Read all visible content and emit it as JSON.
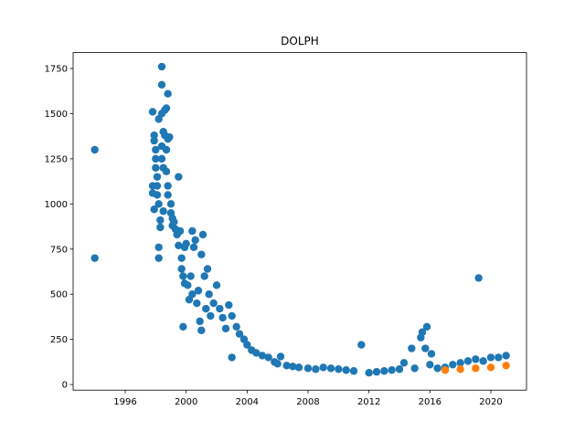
{
  "chart_data": {
    "type": "scatter",
    "title": "DOLPH",
    "xlim": [
      1992.58,
      2022.34
    ],
    "ylim": [
      -31,
      1838
    ],
    "xticks": [
      1996,
      2000,
      2004,
      2008,
      2012,
      2016,
      2020
    ],
    "yticks": [
      0,
      250,
      500,
      750,
      1000,
      1250,
      1500,
      1750
    ],
    "series": [
      {
        "color": "#1f77b4",
        "x": [
          1994.0,
          1994.0,
          1997.8,
          1997.9,
          1997.9,
          1997.8,
          1997.8,
          1997.9,
          1998.0,
          1998.0,
          1998.0,
          1998.1,
          1998.1,
          1998.1,
          1998.2,
          1998.2,
          1998.2,
          1998.2,
          1998.3,
          1998.3,
          1998.4,
          1998.4,
          1998.4,
          1998.4,
          1998.4,
          1998.5,
          1998.5,
          1998.5,
          1998.6,
          1998.6,
          1998.7,
          1998.7,
          1998.7,
          1998.8,
          1998.8,
          1998.8,
          1998.8,
          1998.9,
          1999.0,
          1999.0,
          1999.1,
          1999.1,
          1999.2,
          1999.3,
          1999.4,
          1999.5,
          1999.5,
          1999.6,
          1999.7,
          1999.7,
          1999.8,
          1999.8,
          1999.9,
          1999.9,
          2000.0,
          2000.1,
          2000.2,
          2000.3,
          2000.4,
          2000.4,
          2000.5,
          2000.6,
          2000.7,
          2000.8,
          2000.9,
          2001.0,
          2001.0,
          2001.1,
          2001.2,
          2001.3,
          2001.4,
          2001.5,
          2001.6,
          2001.8,
          2002.0,
          2002.2,
          2002.4,
          2002.6,
          2002.8,
          2003.0,
          2003.0,
          2003.3,
          2003.5,
          2003.8,
          2004.0,
          2004.3,
          2004.6,
          2005.0,
          2005.4,
          2005.8,
          2006.0,
          2006.2,
          2006.6,
          2007.0,
          2007.4,
          2008.0,
          2008.5,
          2009.0,
          2009.5,
          2010.0,
          2010.5,
          2011.0,
          2011.5,
          2012.0,
          2012.5,
          2013.0,
          2013.5,
          2014.0,
          2014.3,
          2014.8,
          2015.0,
          2015.4,
          2015.5,
          2015.7,
          2015.8,
          2016.0,
          2016.1,
          2016.5,
          2017.0,
          2017.5,
          2018.0,
          2018.5,
          2019.0,
          2019.2,
          2019.5,
          2020.0,
          2020.5,
          2021.0
        ],
        "values": [
          1300,
          700,
          1510,
          1380,
          1350,
          1100,
          1060,
          970,
          1300,
          1250,
          1200,
          1150,
          1100,
          1050,
          1470,
          1000,
          760,
          700,
          910,
          870,
          1760,
          1660,
          1500,
          1320,
          1250,
          1400,
          1200,
          960,
          1520,
          1380,
          1530,
          1300,
          1180,
          1610,
          1360,
          1100,
          1050,
          1370,
          1000,
          950,
          920,
          880,
          900,
          860,
          830,
          1150,
          770,
          850,
          700,
          640,
          320,
          600,
          760,
          560,
          780,
          550,
          470,
          600,
          850,
          500,
          760,
          800,
          450,
          520,
          350,
          300,
          720,
          830,
          600,
          420,
          640,
          500,
          380,
          450,
          550,
          420,
          370,
          310,
          440,
          150,
          380,
          320,
          280,
          250,
          220,
          190,
          175,
          160,
          150,
          125,
          115,
          155,
          105,
          100,
          95,
          90,
          85,
          95,
          90,
          85,
          80,
          75,
          220,
          65,
          70,
          75,
          80,
          85,
          120,
          200,
          90,
          260,
          290,
          200,
          320,
          110,
          170,
          90,
          95,
          110,
          120,
          130,
          140,
          590,
          130,
          150,
          150,
          160
        ]
      },
      {
        "color": "#ff7f0e",
        "x": [
          2017.0,
          2018.0,
          2019.0,
          2020.0,
          2021.0
        ],
        "values": [
          80,
          85,
          90,
          95,
          105
        ]
      }
    ]
  }
}
